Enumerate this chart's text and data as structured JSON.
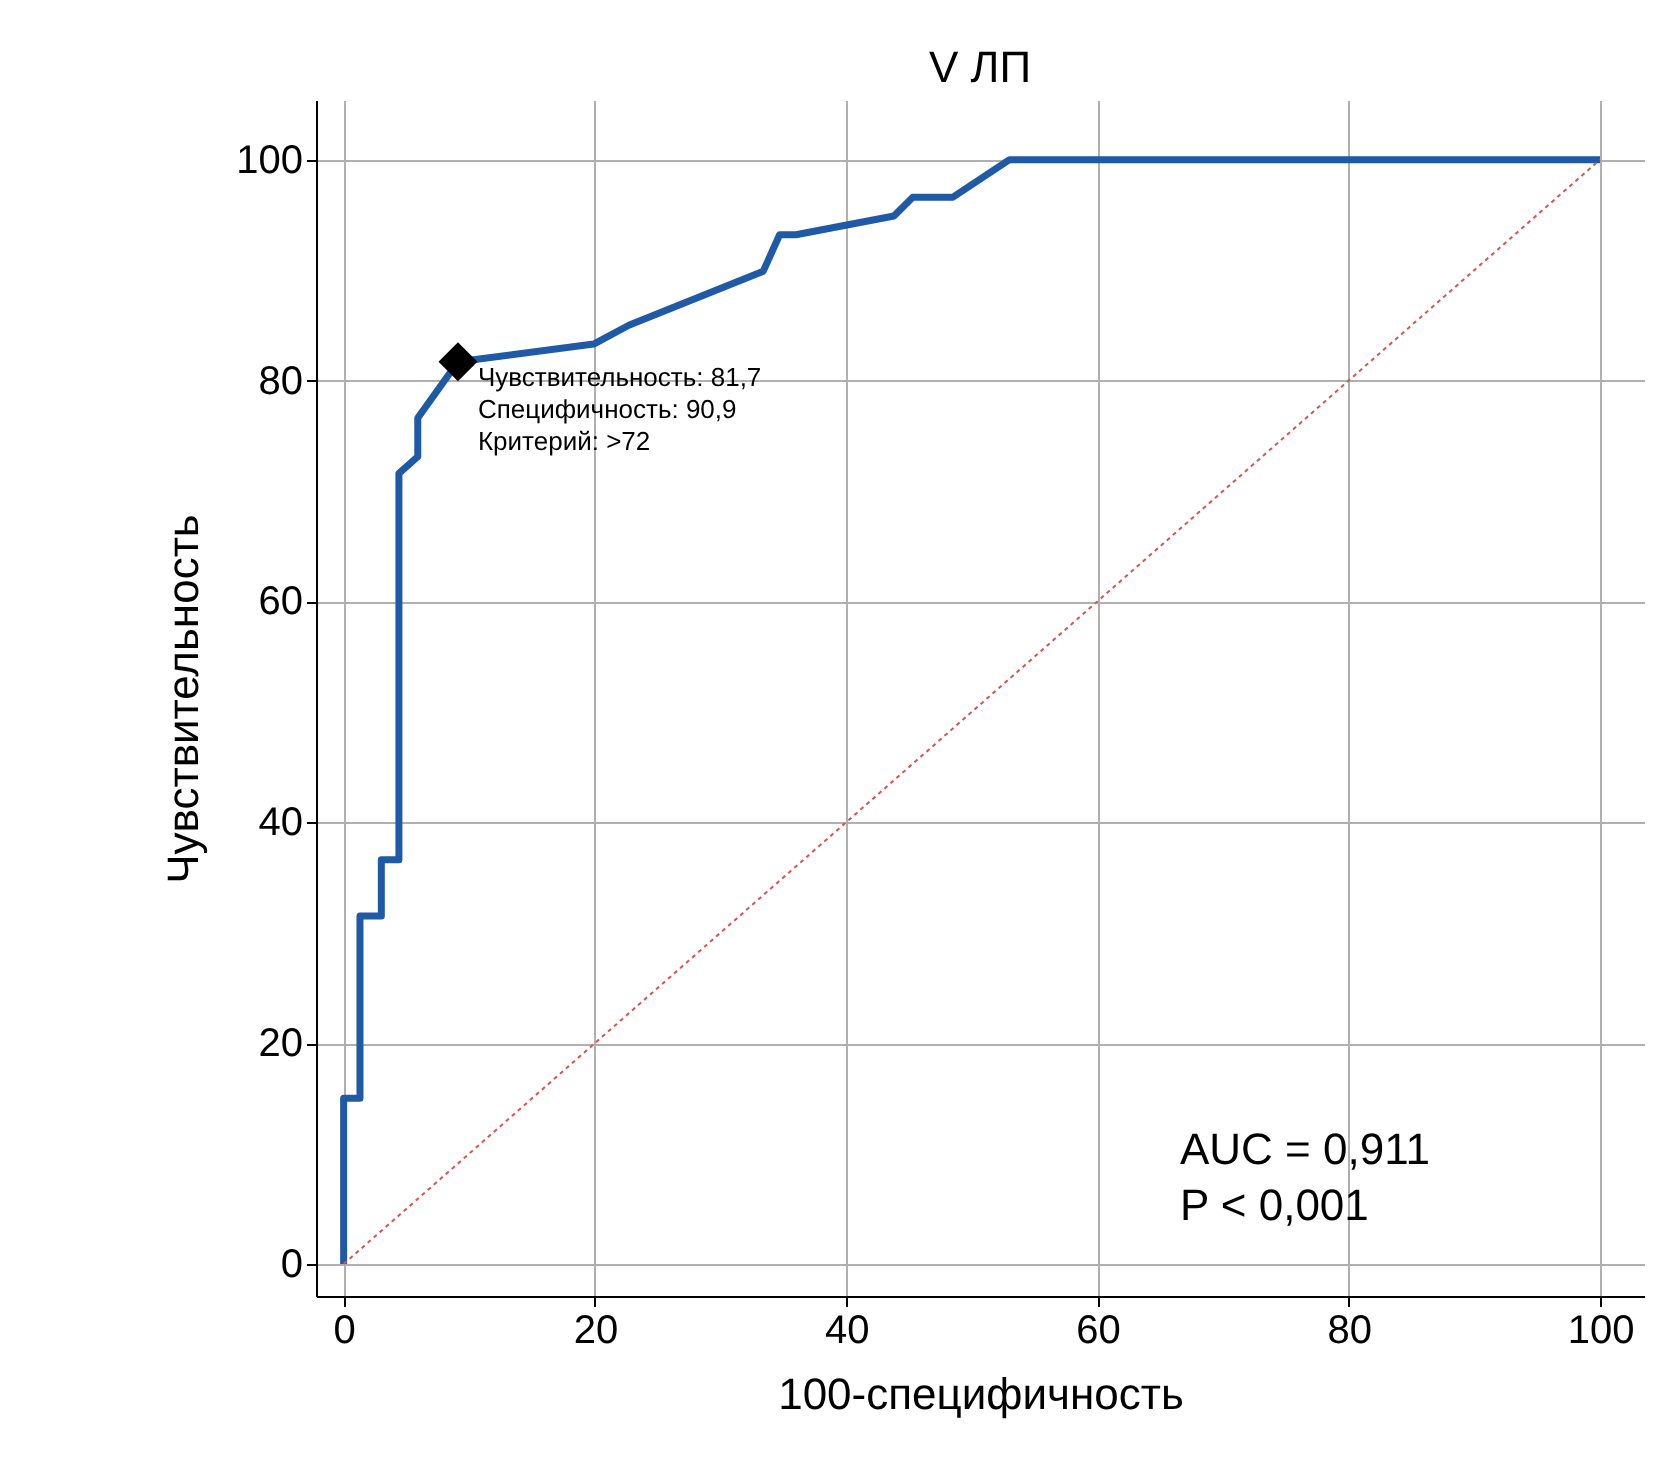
{
  "chart_data": {
    "type": "line",
    "title": "V ЛП",
    "xlabel": "100-специфичность",
    "ylabel": "Чувствительность",
    "xlim": [
      -2.2,
      103.5
    ],
    "ylim": [
      -2.9,
      105.4
    ],
    "xticks": [
      0,
      20,
      40,
      60,
      80,
      100
    ],
    "yticks": [
      0,
      20,
      40,
      60,
      80,
      100
    ],
    "grid": true,
    "series": [
      {
        "color": "#1f5aa6",
        "x": [
          0,
          0,
          1.3,
          1.3,
          3.0,
          3.0,
          4.4,
          4.4,
          5.9,
          5.9,
          9.1,
          19.9,
          22.7,
          33.4,
          34.7,
          36,
          43.8,
          45.3,
          48.5,
          53,
          100
        ],
        "values": [
          0,
          15,
          15,
          31.5,
          31.5,
          36.6,
          36.6,
          71.6,
          73.1,
          76.6,
          81.7,
          83.3,
          85,
          89.9,
          93.2,
          93.2,
          94.9,
          96.6,
          96.6,
          100,
          100
        ]
      },
      {
        "type": "line",
        "color": "#d9534f",
        "line_style": "dotted",
        "x": [
          0,
          100
        ],
        "values": [
          0,
          100
        ]
      },
      {
        "type": "scatter",
        "color": "#000000",
        "marker": "diamond",
        "x": [
          9.1
        ],
        "values": [
          81.7
        ]
      }
    ],
    "annotations": [
      {
        "text": "Чувствительность: 81,7\nСпецифичность: 90,9\nКритерий: >72",
        "x": 9.1,
        "y": 81.7
      },
      "AUC = 0,911\nP < 0,001"
    ]
  }
}
